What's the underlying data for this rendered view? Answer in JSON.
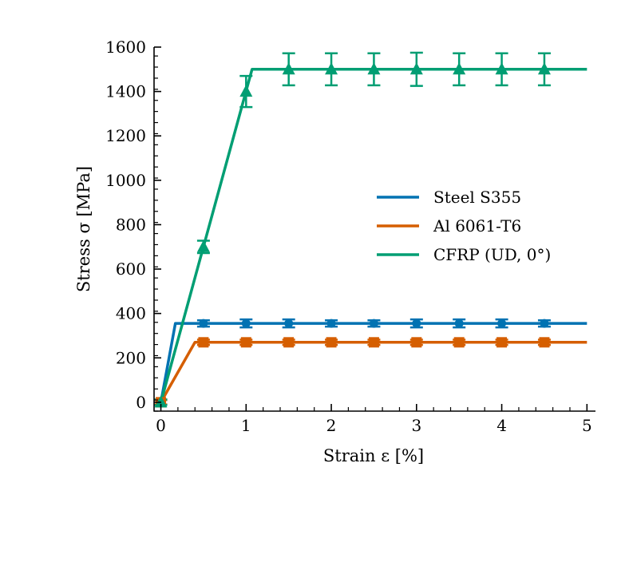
{
  "chart_data": {
    "type": "line",
    "title": "",
    "xlabel": "Strain ε [%]",
    "ylabel": "Stress σ [MPa]",
    "xlim": [
      -0.08,
      5.1
    ],
    "ylim": [
      -40,
      1600
    ],
    "xticks": [
      0,
      1,
      2,
      3,
      4,
      5
    ],
    "xtick_labels": [
      "0",
      "1",
      "2",
      "3",
      "4",
      "5"
    ],
    "yticks": [
      0,
      200,
      400,
      600,
      800,
      1000,
      1200,
      1400,
      1600
    ],
    "ytick_labels": [
      "0",
      "200",
      "400",
      "600",
      "800",
      "1000",
      "1200",
      "1400",
      "1600"
    ],
    "grid": false,
    "legend_position": "center-right",
    "series": [
      {
        "name": "Steel S355",
        "color": "#0072b2",
        "marker": "circle",
        "curve": {
          "x": [
            0,
            0.17,
            5
          ],
          "y": [
            0,
            355,
            355
          ]
        },
        "points": {
          "x": [
            0,
            0.5,
            1.0,
            1.5,
            2.0,
            2.5,
            3.0,
            3.5,
            4.0,
            4.5
          ],
          "y": [
            0,
            355,
            355,
            355,
            355,
            355,
            355,
            355,
            355,
            355
          ],
          "err": [
            12,
            14,
            18,
            18,
            14,
            14,
            18,
            18,
            18,
            14
          ]
        }
      },
      {
        "name": "Al 6061-T6",
        "color": "#d55e00",
        "marker": "square",
        "curve": {
          "x": [
            0,
            0.4,
            5
          ],
          "y": [
            0,
            270,
            270
          ]
        },
        "points": {
          "x": [
            0,
            0.5,
            1.0,
            1.5,
            2.0,
            2.5,
            3.0,
            3.5,
            4.0,
            4.5
          ],
          "y": [
            0,
            270,
            270,
            270,
            270,
            270,
            270,
            270,
            270,
            270
          ],
          "err": [
            10,
            12,
            12,
            12,
            12,
            12,
            12,
            12,
            12,
            12
          ]
        }
      },
      {
        "name": "CFRP (UD, 0°)",
        "color": "#009e73",
        "marker": "triangle",
        "curve": {
          "x": [
            0,
            1.07,
            5
          ],
          "y": [
            0,
            1500,
            1500
          ]
        },
        "points": {
          "x": [
            0,
            0.5,
            1.0,
            1.5,
            2.0,
            2.5,
            3.0,
            3.5,
            4.0,
            4.5
          ],
          "y": [
            0,
            700,
            1400,
            1500,
            1500,
            1500,
            1500,
            1500,
            1500,
            1500
          ],
          "err": [
            12,
            28,
            70,
            72,
            72,
            72,
            75,
            72,
            72,
            72
          ]
        }
      }
    ]
  }
}
